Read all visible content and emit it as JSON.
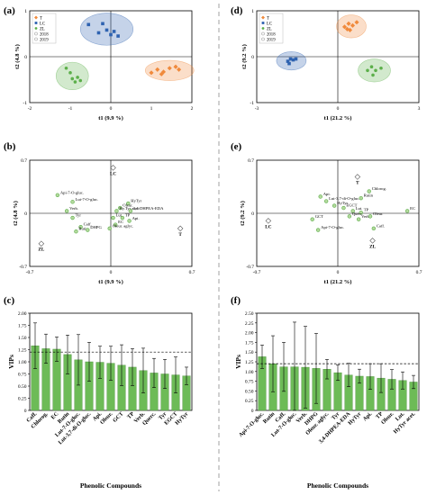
{
  "figure": {
    "panel_labels": [
      "(a)",
      "(b)",
      "(c)",
      "(d)",
      "(e)",
      "(f)"
    ]
  },
  "colors": {
    "T": "#f08a3c",
    "LC": "#2e62b0",
    "ZL": "#5caf4a",
    "bar": "#6dbb57"
  },
  "chart_data": [
    {
      "id": "a",
      "type": "scatter",
      "title": "",
      "xlabel": "t1 (9.9 %)",
      "ylabel": "t2 (4.8 %)",
      "xlim": [
        -2,
        2
      ],
      "ylim": [
        -1,
        1
      ],
      "x_ticks": [
        "-2",
        "-1",
        "0",
        "1",
        "2"
      ],
      "y_ticks": [
        "-1",
        "0",
        "1"
      ],
      "legend": {
        "position": "top-left",
        "items": [
          "T",
          "LC",
          "ZL",
          "2018",
          "2019"
        ]
      },
      "series": [
        {
          "name": "T",
          "points": [
            [
              1.0,
              -0.35
            ],
            [
              1.15,
              -0.28
            ],
            [
              1.3,
              -0.33
            ],
            [
              1.45,
              -0.25
            ],
            [
              1.6,
              -0.22
            ],
            [
              1.68,
              -0.28
            ],
            [
              1.25,
              -0.38
            ]
          ]
        },
        {
          "name": "LC",
          "points": [
            [
              -0.55,
              0.7
            ],
            [
              -0.3,
              0.52
            ],
            [
              -0.2,
              0.72
            ],
            [
              -0.1,
              0.58
            ],
            [
              0.0,
              0.48
            ],
            [
              0.08,
              0.55
            ],
            [
              0.18,
              0.45
            ]
          ]
        },
        {
          "name": "ZL",
          "points": [
            [
              -1.1,
              -0.25
            ],
            [
              -1.0,
              -0.35
            ],
            [
              -0.95,
              -0.48
            ],
            [
              -0.88,
              -0.55
            ],
            [
              -0.82,
              -0.45
            ],
            [
              -0.75,
              -0.52
            ]
          ]
        }
      ],
      "ellipses": [
        {
          "group": "T",
          "cx": 1.45,
          "cy": -0.3,
          "rx": 0.6,
          "ry": 0.22
        },
        {
          "group": "LC",
          "cx": -0.1,
          "cy": 0.6,
          "rx": 0.65,
          "ry": 0.35
        },
        {
          "group": "ZL",
          "cx": -0.95,
          "cy": -0.42,
          "rx": 0.4,
          "ry": 0.3
        }
      ]
    },
    {
      "id": "b",
      "type": "scatter",
      "title": "",
      "xlabel": "t1 (9.9 %)",
      "ylabel": "t2 (4.8 %)",
      "xlim": [
        -0.7,
        0.7
      ],
      "ylim": [
        -0.7,
        0.7
      ],
      "x_ticks": [
        "-0.7",
        "0",
        "0.7"
      ],
      "y_ticks": [
        "-0.7",
        "0",
        "0.7"
      ],
      "groups": [
        {
          "name": "LC",
          "x": 0.02,
          "y": 0.6
        },
        {
          "name": "T",
          "x": 0.6,
          "y": -0.2
        },
        {
          "name": "ZL",
          "x": -0.6,
          "y": -0.4
        }
      ],
      "variables": [
        {
          "name": "Api-7-O-gluc.",
          "x": -0.46,
          "y": 0.24
        },
        {
          "name": "Lut-7-O-gluc.",
          "x": -0.33,
          "y": 0.15
        },
        {
          "name": "Verb.",
          "x": -0.38,
          "y": 0.03
        },
        {
          "name": "Tyr",
          "x": -0.33,
          "y": -0.06
        },
        {
          "name": "Caff.",
          "x": -0.26,
          "y": -0.18
        },
        {
          "name": "Rutin",
          "x": -0.3,
          "y": -0.24
        },
        {
          "name": "DHPG",
          "x": -0.2,
          "y": -0.22
        },
        {
          "name": "HyTyr",
          "x": 0.15,
          "y": 0.13
        },
        {
          "name": "Oleur.",
          "x": 0.08,
          "y": 0.07
        },
        {
          "name": "Hy.Tyr acet.",
          "x": 0.05,
          "y": 0.03
        },
        {
          "name": "3,4-DHPEA-EDA",
          "x": 0.17,
          "y": 0.03
        },
        {
          "name": "Lut.",
          "x": 0.02,
          "y": -0.06
        },
        {
          "name": "TP",
          "x": 0.1,
          "y": -0.06
        },
        {
          "name": "Api.",
          "x": 0.16,
          "y": -0.1
        },
        {
          "name": "EC",
          "x": 0.04,
          "y": -0.15
        },
        {
          "name": "Oleur. aglyc.",
          "x": -0.01,
          "y": -0.2
        }
      ]
    },
    {
      "id": "c",
      "type": "bar",
      "title": "",
      "xlabel": "Phenolic Compounds",
      "ylabel": "VIPs",
      "ylim": [
        0,
        2.0
      ],
      "y_ticks": [
        "0",
        "0.25",
        "0.50",
        "0.75",
        "1.00",
        "1.25",
        "1.50",
        "1.75",
        "2.00"
      ],
      "threshold": 1.2,
      "categories": [
        "Caff.",
        "Chlorog.",
        "EC",
        "Rutin",
        "Lut-7-O-gluc.",
        "Lut-3,7-di-O-gluc.",
        "Api.",
        "Oleur.",
        "GCT",
        "TP",
        "Verb.",
        "Querc.",
        "Tyr",
        "EGCT",
        "HyTyr"
      ],
      "values": [
        1.33,
        1.27,
        1.26,
        1.15,
        1.04,
        1.0,
        0.99,
        0.97,
        0.93,
        0.89,
        0.82,
        0.77,
        0.75,
        0.73,
        0.71
      ],
      "errors": [
        0.47,
        0.3,
        0.25,
        0.4,
        0.52,
        0.4,
        0.33,
        0.35,
        0.42,
        0.38,
        0.46,
        0.3,
        0.3,
        0.37,
        0.18
      ]
    },
    {
      "id": "d",
      "type": "scatter",
      "title": "",
      "xlabel": "t1 (21.2 %)",
      "ylabel": "t2 (9.2 %)",
      "xlim": [
        -3,
        3
      ],
      "ylim": [
        -1,
        1
      ],
      "x_ticks": [
        "-3",
        "0",
        "3"
      ],
      "y_ticks": [
        "-1",
        "0",
        "1"
      ],
      "legend": {
        "position": "top-left",
        "items": [
          "T",
          "LC",
          "ZL",
          "2018",
          "2019"
        ]
      },
      "series": [
        {
          "name": "T",
          "points": [
            [
              0.25,
              0.65
            ],
            [
              0.4,
              0.72
            ],
            [
              0.55,
              0.68
            ],
            [
              0.7,
              0.75
            ],
            [
              0.45,
              0.58
            ],
            [
              0.35,
              0.6
            ]
          ]
        },
        {
          "name": "LC",
          "points": [
            [
              -1.85,
              -0.1
            ],
            [
              -1.75,
              -0.05
            ],
            [
              -1.65,
              -0.07
            ],
            [
              -1.55,
              -0.05
            ],
            [
              -1.8,
              -0.15
            ]
          ]
        },
        {
          "name": "ZL",
          "points": [
            [
              1.1,
              -0.3
            ],
            [
              1.25,
              -0.22
            ],
            [
              1.4,
              -0.3
            ],
            [
              1.6,
              -0.25
            ],
            [
              1.3,
              -0.4
            ]
          ]
        }
      ],
      "ellipses": [
        {
          "group": "T",
          "cx": 0.5,
          "cy": 0.66,
          "rx": 0.55,
          "ry": 0.25
        },
        {
          "group": "LC",
          "cx": -1.72,
          "cy": -0.09,
          "rx": 0.55,
          "ry": 0.2
        },
        {
          "group": "ZL",
          "cx": 1.35,
          "cy": -0.3,
          "rx": 0.6,
          "ry": 0.25
        }
      ]
    },
    {
      "id": "e",
      "type": "scatter",
      "title": "",
      "xlabel": "t1 (21.2 %)",
      "ylabel": "t2 (9.2 %)",
      "xlim": [
        -0.7,
        0.7
      ],
      "ylim": [
        -0.7,
        0.7
      ],
      "x_ticks": [
        "-0.7",
        "0",
        "0.7"
      ],
      "y_ticks": [
        "-0.7",
        "0",
        "0.7"
      ],
      "groups": [
        {
          "name": "T",
          "x": 0.17,
          "y": 0.48
        },
        {
          "name": "LC",
          "x": -0.6,
          "y": -0.1
        },
        {
          "name": "ZL",
          "x": 0.3,
          "y": -0.36
        }
      ],
      "variables": [
        {
          "name": "Chlorog.",
          "x": 0.27,
          "y": 0.29
        },
        {
          "name": "Rutin",
          "x": 0.2,
          "y": 0.2
        },
        {
          "name": "Api.",
          "x": -0.15,
          "y": 0.22
        },
        {
          "name": "Lut-3,7-di-O-gluc.",
          "x": -0.1,
          "y": 0.16
        },
        {
          "name": "HyTyr",
          "x": -0.03,
          "y": 0.1
        },
        {
          "name": "EGCT",
          "x": 0.05,
          "y": 0.07
        },
        {
          "name": "EC",
          "x": 0.6,
          "y": 0.03
        },
        {
          "name": "Lut.",
          "x": 0.13,
          "y": 0.03
        },
        {
          "name": "TP",
          "x": 0.2,
          "y": 0.01
        },
        {
          "name": "Querc.",
          "x": 0.1,
          "y": -0.04
        },
        {
          "name": "Verb.",
          "x": 0.18,
          "y": -0.08
        },
        {
          "name": "Oleur.",
          "x": 0.28,
          "y": -0.04
        },
        {
          "name": "GCT",
          "x": -0.22,
          "y": -0.08
        },
        {
          "name": "Caff.",
          "x": 0.31,
          "y": -0.2
        },
        {
          "name": "Api-7-O-gluc.",
          "x": -0.17,
          "y": -0.22
        }
      ]
    },
    {
      "id": "f",
      "type": "bar",
      "title": "",
      "xlabel": "Phenolic Compounds",
      "ylabel": "VIPs",
      "ylim": [
        0,
        2.5
      ],
      "y_ticks": [
        "0",
        "0.25",
        "0.50",
        "0.75",
        "1.00",
        "1.25",
        "1.50",
        "1.75",
        "2.00",
        "2.25",
        "2.50"
      ],
      "threshold": 1.2,
      "categories": [
        "Api-7-O-gluc.",
        "Rutin",
        "Caff.",
        "Lut-7-O-gluc.",
        "Verb.",
        "DHPG",
        "Oleur. aglyc.",
        "Tyr",
        "3,4-DHPEA-EDA",
        "HyTyr",
        "Api.",
        "TP",
        "Oleur.",
        "Lut.",
        "HyTyr acet."
      ],
      "values": [
        1.38,
        1.2,
        1.12,
        1.12,
        1.11,
        1.08,
        1.06,
        0.97,
        0.91,
        0.88,
        0.87,
        0.83,
        0.8,
        0.77,
        0.73
      ],
      "errors": [
        0.3,
        0.72,
        0.63,
        1.15,
        1.05,
        0.9,
        0.25,
        0.2,
        0.3,
        0.18,
        0.33,
        0.37,
        0.25,
        0.22,
        0.17
      ]
    }
  ]
}
